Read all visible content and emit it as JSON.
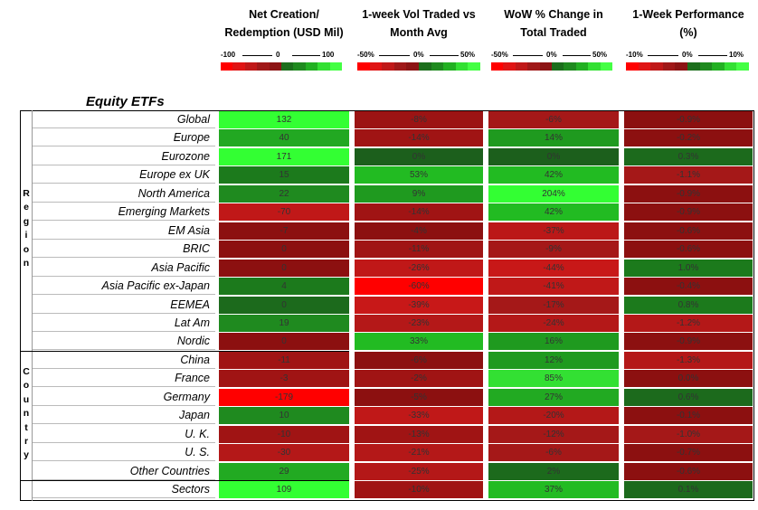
{
  "headers": [
    {
      "line1": "Net Creation/",
      "line2": "Redemption (USD Mil)"
    },
    {
      "line1": "1-week Vol Traded vs",
      "line2": "Month Avg"
    },
    {
      "line1": "WoW % Change in",
      "line2": "Total Traded"
    },
    {
      "line1": "1-Week Performance",
      "line2": "(%)"
    }
  ],
  "scales": [
    {
      "min": "-100",
      "mid": "0",
      "max": "100"
    },
    {
      "min": "-50%",
      "mid": "0%",
      "max": "50%"
    },
    {
      "min": "-50%",
      "mid": "0%",
      "max": "50%"
    },
    {
      "min": "-10%",
      "mid": "0%",
      "max": "10%"
    }
  ],
  "scale_colors": [
    "#ff0000",
    "#e01414",
    "#c01818",
    "#a01818",
    "#8c1414",
    "#1c6e1c",
    "#1f8a1f",
    "#22b022",
    "#33e033",
    "#44ff44"
  ],
  "table_title": "Equity ETFs",
  "group_labels": {
    "region": [
      "R",
      "e",
      "g",
      "i",
      "o",
      "n"
    ],
    "country": [
      "C",
      "o",
      "u",
      "n",
      "t",
      "r",
      "y"
    ]
  },
  "rows": [
    {
      "label": "Global",
      "values": [
        "132",
        "-8%",
        "-6%",
        "-0.9%"
      ],
      "colors": [
        "#33ff33",
        "#9c1414",
        "#a51818",
        "#8c1010"
      ]
    },
    {
      "label": "Europe",
      "values": [
        "40",
        "-14%",
        "14%",
        "-0.2%"
      ],
      "colors": [
        "#22a822",
        "#a01414",
        "#1f9a1f",
        "#8c1010"
      ]
    },
    {
      "label": "Eurozone",
      "values": [
        "171",
        "0%",
        "0%",
        "0.3%"
      ],
      "colors": [
        "#33ff33",
        "#1c5f1c",
        "#1c5f1c",
        "#1c6a1c"
      ]
    },
    {
      "label": "Europe ex UK",
      "values": [
        "15",
        "53%",
        "42%",
        "-1.1%"
      ],
      "colors": [
        "#1c7a1c",
        "#22bb22",
        "#22bb22",
        "#a51818"
      ]
    },
    {
      "label": "North America",
      "values": [
        "22",
        "9%",
        "204%",
        "-0.9%"
      ],
      "colors": [
        "#1f8a1f",
        "#1f9a1f",
        "#33ff33",
        "#8c1010"
      ]
    },
    {
      "label": "Emerging Markets",
      "values": [
        "-70",
        "-14%",
        "42%",
        "-0.9%"
      ],
      "colors": [
        "#c01818",
        "#a01414",
        "#22bb22",
        "#8c1010"
      ]
    },
    {
      "label": "EM Asia",
      "values": [
        "-7",
        "-4%",
        "-37%",
        "-0.6%"
      ],
      "colors": [
        "#8c1010",
        "#8c1010",
        "#bb1818",
        "#8c1010"
      ]
    },
    {
      "label": "BRIC",
      "values": [
        "0",
        "-11%",
        "-9%",
        "-0.6%"
      ],
      "colors": [
        "#8c1010",
        "#a01414",
        "#a51818",
        "#8c1010"
      ]
    },
    {
      "label": "Asia Pacific",
      "values": [
        "0",
        "-26%",
        "-44%",
        "1.0%"
      ],
      "colors": [
        "#8c1010",
        "#c01818",
        "#c81818",
        "#1c7a1c"
      ]
    },
    {
      "label": "Asia Pacific ex-Japan",
      "values": [
        "4",
        "-60%",
        "-41%",
        "-0.4%"
      ],
      "colors": [
        "#1c7a1c",
        "#ff0000",
        "#c01818",
        "#8c1010"
      ]
    },
    {
      "label": "EEMEA",
      "values": [
        "0",
        "-39%",
        "-17%",
        "0.8%"
      ],
      "colors": [
        "#1c6a1c",
        "#c81818",
        "#a51818",
        "#1c7a1c"
      ]
    },
    {
      "label": "Lat Am",
      "values": [
        "19",
        "-23%",
        "-24%",
        "-1.2%"
      ],
      "colors": [
        "#1f8a1f",
        "#b41818",
        "#b41818",
        "#b41818"
      ]
    },
    {
      "label": "Nordic",
      "values": [
        "0",
        "33%",
        "16%",
        "-0.9%"
      ],
      "colors": [
        "#8c1010",
        "#22bb22",
        "#1f9a1f",
        "#8c1010"
      ]
    },
    {
      "label": "China",
      "values": [
        "-11",
        "-6%",
        "12%",
        "-1.3%"
      ],
      "colors": [
        "#a01414",
        "#8c1010",
        "#1f9a1f",
        "#b41818"
      ]
    },
    {
      "label": "France",
      "values": [
        "-3",
        "-2%",
        "85%",
        "0.0%"
      ],
      "colors": [
        "#a01414",
        "#a01414",
        "#33e033",
        "#8c1010"
      ]
    },
    {
      "label": "Germany",
      "values": [
        "-179",
        "-5%",
        "27%",
        "0.6%"
      ],
      "colors": [
        "#ff0000",
        "#8c1010",
        "#22aa22",
        "#1c6a1c"
      ]
    },
    {
      "label": "Japan",
      "values": [
        "10",
        "-33%",
        "-20%",
        "-0.1%"
      ],
      "colors": [
        "#1f8a1f",
        "#c01818",
        "#b41818",
        "#8c1010"
      ]
    },
    {
      "label": "U. K.",
      "values": [
        "-10",
        "-13%",
        "-12%",
        "-1.0%"
      ],
      "colors": [
        "#a01414",
        "#a01414",
        "#a51818",
        "#a51818"
      ]
    },
    {
      "label": "U. S.",
      "values": [
        "-30",
        "-21%",
        "-6%",
        "-0.7%"
      ],
      "colors": [
        "#b41818",
        "#b41818",
        "#a51818",
        "#8c1010"
      ]
    },
    {
      "label": "Other Countries",
      "values": [
        "29",
        "-25%",
        "2%",
        "-0.6%"
      ],
      "colors": [
        "#22aa22",
        "#b41818",
        "#1c6a1c",
        "#8c1010"
      ]
    },
    {
      "label": "Sectors",
      "values": [
        "109",
        "-10%",
        "37%",
        "0.1%"
      ],
      "colors": [
        "#33ff33",
        "#a01414",
        "#22bb22",
        "#1c6a1c"
      ]
    }
  ]
}
